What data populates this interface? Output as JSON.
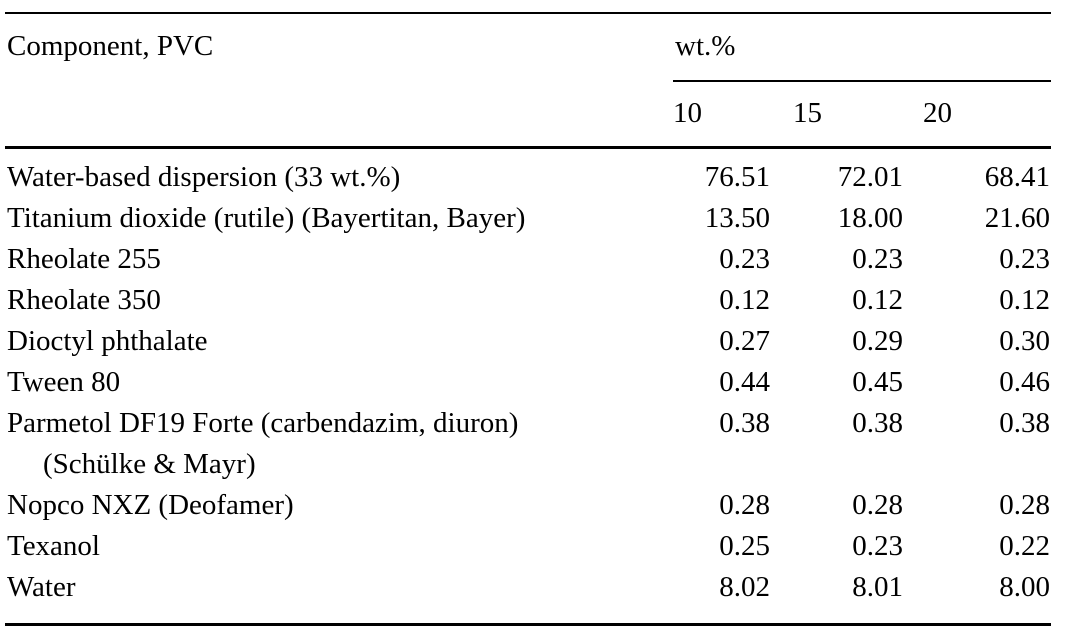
{
  "page": {
    "background_color": "#ffffff",
    "text_color": "#000000"
  },
  "table": {
    "component_header": "Component, PVC",
    "spanner_header": "wt.%",
    "level_headers": [
      "10",
      "15",
      "20"
    ],
    "rows": [
      {
        "component": "Water-based dispersion (33 wt.%)",
        "values": [
          "76.51",
          "72.01",
          "68.41"
        ]
      },
      {
        "component": "Titanium dioxide (rutile) (Bayertitan, Bayer)",
        "values": [
          "13.50",
          "18.00",
          "21.60"
        ]
      },
      {
        "component": "Rheolate 255",
        "values": [
          "0.23",
          "0.23",
          "0.23"
        ]
      },
      {
        "component": "Rheolate 350",
        "values": [
          "0.12",
          "0.12",
          "0.12"
        ]
      },
      {
        "component": "Dioctyl phthalate",
        "values": [
          "0.27",
          "0.29",
          "0.30"
        ]
      },
      {
        "component": "Tween 80",
        "values": [
          "0.44",
          "0.45",
          "0.46"
        ]
      },
      {
        "component": "Parmetol DF19 Forte (carbendazim, diuron)",
        "component_line2": "(Schülke & Mayr)",
        "values": [
          "0.38",
          "0.38",
          "0.38"
        ]
      },
      {
        "component": "Nopco NXZ (Deofamer)",
        "values": [
          "0.28",
          "0.28",
          "0.28"
        ]
      },
      {
        "component": "Texanol",
        "values": [
          "0.25",
          "0.23",
          "0.22"
        ]
      },
      {
        "component": "Water",
        "values": [
          "8.02",
          "8.01",
          "8.00"
        ]
      }
    ]
  },
  "chart_data": {
    "type": "table",
    "title": "",
    "columns": [
      "Component, PVC",
      "wt.% 10",
      "wt.% 15",
      "wt.% 20"
    ],
    "rows": [
      [
        "Water-based dispersion (33 wt.%)",
        76.51,
        72.01,
        68.41
      ],
      [
        "Titanium dioxide (rutile) (Bayertitan, Bayer)",
        13.5,
        18.0,
        21.6
      ],
      [
        "Rheolate 255",
        0.23,
        0.23,
        0.23
      ],
      [
        "Rheolate 350",
        0.12,
        0.12,
        0.12
      ],
      [
        "Dioctyl phthalate",
        0.27,
        0.29,
        0.3
      ],
      [
        "Tween 80",
        0.44,
        0.45,
        0.46
      ],
      [
        "Parmetol DF19 Forte (carbendazim, diuron) (Schülke & Mayr)",
        0.38,
        0.38,
        0.38
      ],
      [
        "Nopco NXZ (Deofamer)",
        0.28,
        0.28,
        0.28
      ],
      [
        "Texanol",
        0.25,
        0.23,
        0.22
      ],
      [
        "Water",
        8.02,
        8.01,
        8.0
      ]
    ]
  }
}
